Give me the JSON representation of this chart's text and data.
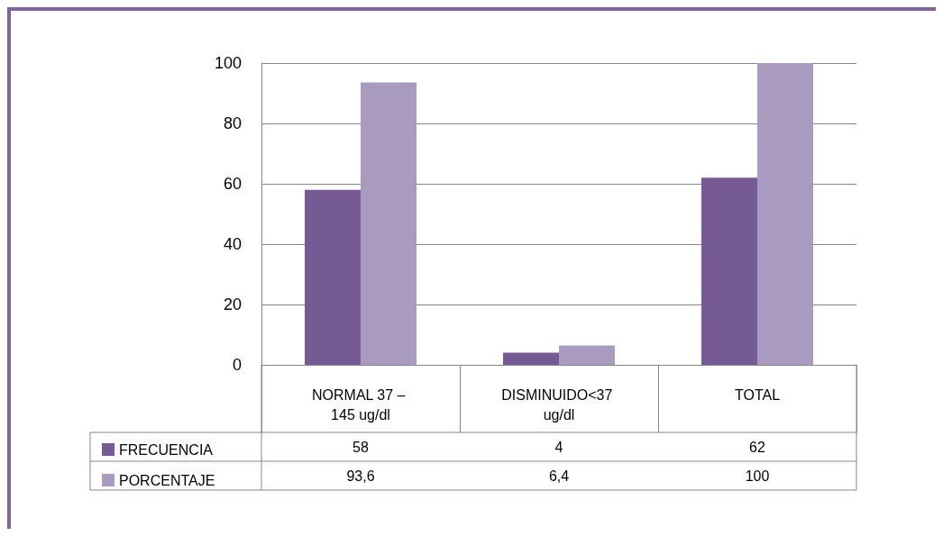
{
  "chart_data": {
    "type": "bar",
    "categories": [
      "NORMAL 37 – 145 ug/dl",
      "DISMINUIDO<37 ug/dl",
      "TOTAL"
    ],
    "series": [
      {
        "name": "FRECUENCIA",
        "color": "#765a93",
        "values": [
          58,
          4,
          62
        ],
        "value_labels": [
          "58",
          "4",
          "62"
        ]
      },
      {
        "name": "PORCENTAJE",
        "color": "#a99bc0",
        "values": [
          93.6,
          6.4,
          100
        ],
        "value_labels": [
          "93,6",
          "6,4",
          "100"
        ]
      }
    ],
    "ylim": [
      0,
      100
    ],
    "yticks": [
      0,
      20,
      40,
      60,
      80,
      100
    ],
    "grid": "y",
    "legend": "bottom"
  }
}
